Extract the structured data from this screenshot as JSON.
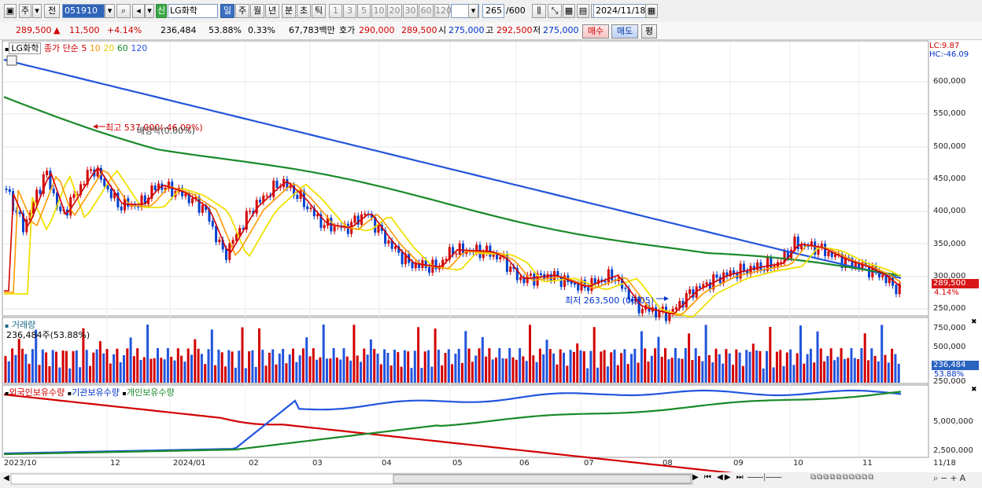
{
  "toolbar": {
    "market": "주",
    "prev_label": "전",
    "code": "051910",
    "name_tag": "신",
    "stock_name": "LG화학",
    "periods": [
      "일",
      "주",
      "월",
      "년",
      "분",
      "초",
      "틱"
    ],
    "selected_period": "일",
    "intervals": [
      "1",
      "3",
      "5",
      "10",
      "20",
      "30",
      "60",
      "120"
    ],
    "count": "265",
    "count_total": "/600",
    "date": "2024/11/18"
  },
  "quote": {
    "price": "289,500",
    "arrow": "▲",
    "change": "11,500",
    "change_pct": "+4.14%",
    "volume": "236,484",
    "vol_ratio": "53.88%",
    "turnover": "0.33%",
    "amount": "67,783백만",
    "ask_label": "호가",
    "ask": "290,000",
    "bid": "289,500",
    "open_label": "시",
    "open": "275,000",
    "high_label": "고",
    "high": "292,500",
    "low_label": "저",
    "low": "275,000",
    "buy_btn": "매수",
    "sell_btn": "매도",
    "eval_btn": "평"
  },
  "price_pane": {
    "stock": "LG화학",
    "ma_title": "종가 단순",
    "ma_periods": [
      "5",
      "10",
      "20",
      "60",
      "120"
    ],
    "ma_colors": [
      "#d20000",
      "#ff9900",
      "#f0e000",
      "#1a8a2a",
      "#2255dd"
    ],
    "lc": "LC:9.87",
    "hc": "HC:-46.09",
    "high_note": "최고 537,000(-46.09%)",
    "dividend_note": "배당락(0.00%)",
    "low_note": "최저 263,500 (08/05)",
    "last_price": "289,500",
    "last_pct": "4.14%",
    "y_ticks": [
      "600,000",
      "550,000",
      "500,000",
      "450,000",
      "400,000",
      "350,000",
      "300,000",
      "250,000"
    ]
  },
  "volume_pane": {
    "title": "거래량",
    "current": "236,484주(53.88%)",
    "y_ticks": [
      "750,000",
      "500,000",
      "250,000"
    ],
    "last": "236,484",
    "last_pct": "53.88%"
  },
  "holdings_pane": {
    "legend": [
      "외국인보유수량",
      "기관보유수량",
      "개인보유수량"
    ],
    "colors": [
      "#d20000",
      "#2255dd",
      "#1a8a2a"
    ],
    "y_ticks": [
      "5,000,000",
      "2,500,000"
    ]
  },
  "x_axis": [
    "2023/10",
    "12",
    "2024/01",
    "02",
    "03",
    "04",
    "05",
    "06",
    "07",
    "08",
    "09",
    "10",
    "11",
    "11/18"
  ]
}
